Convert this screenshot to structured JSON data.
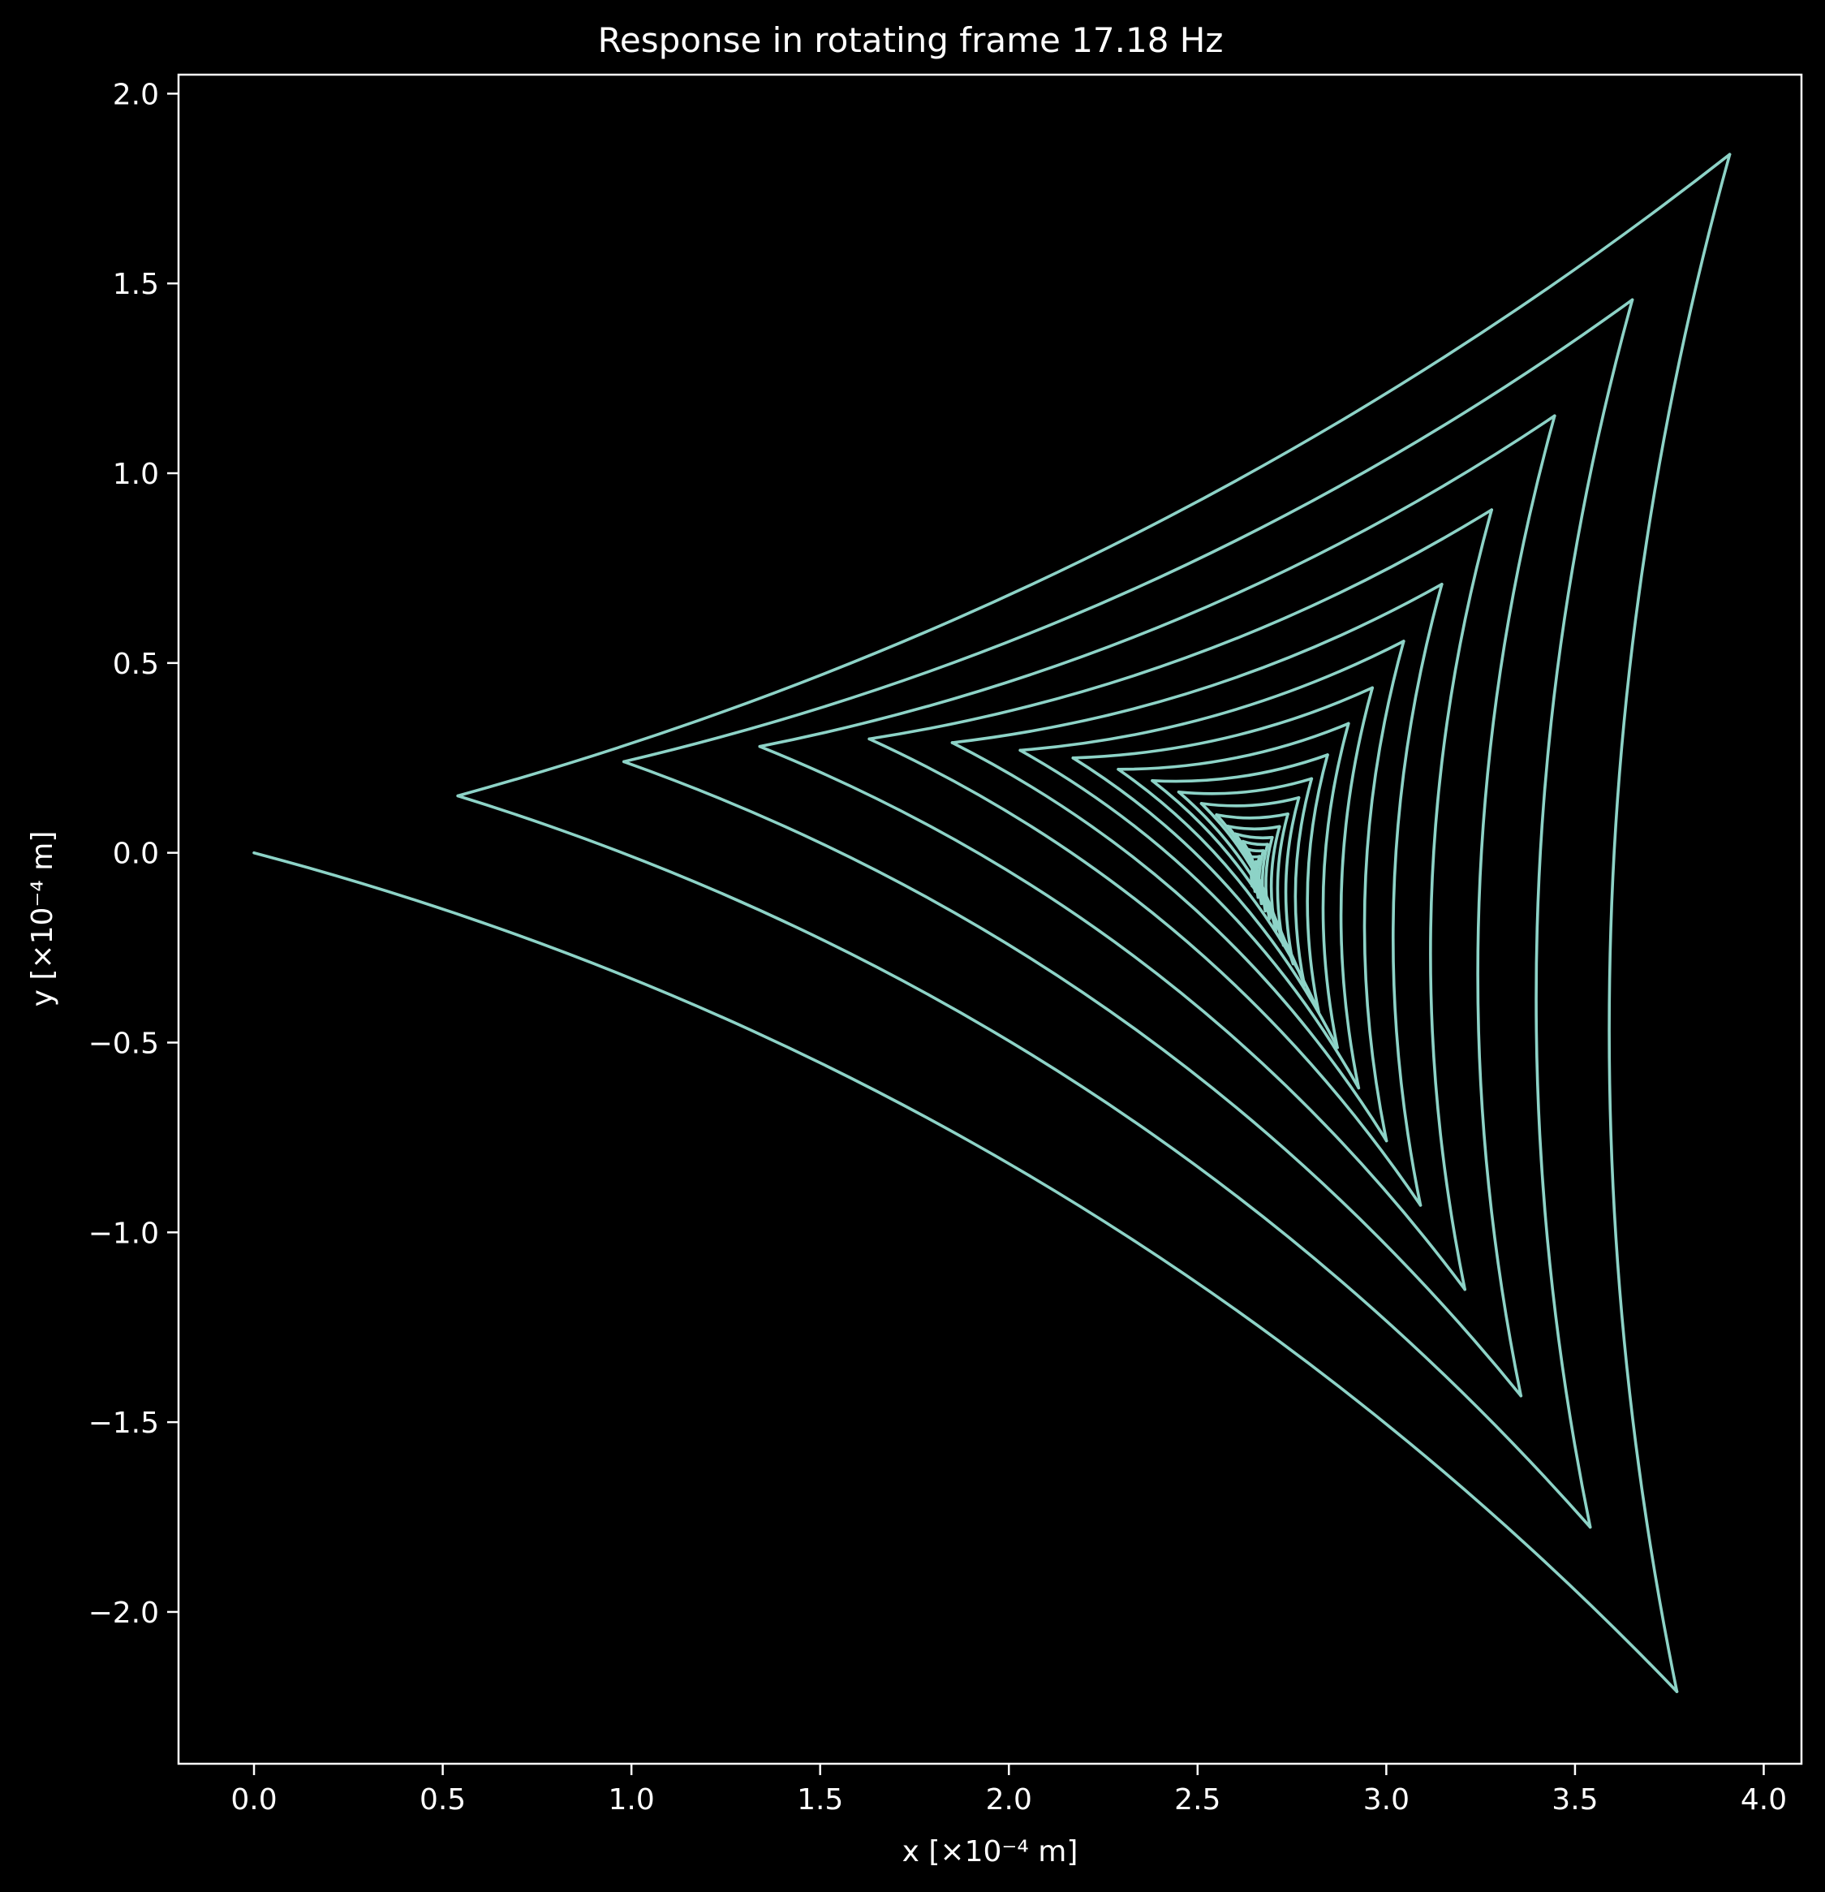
{
  "chart_data": {
    "type": "line",
    "title": "Response in rotating frame 17.18 Hz",
    "xlabel": "x [×10⁻⁴ m]",
    "ylabel": "y [×10⁻⁴ m]",
    "xlim": [
      -0.2,
      4.1
    ],
    "ylim": [
      -2.4,
      2.05
    ],
    "x_ticks": [
      0.0,
      0.5,
      1.0,
      1.5,
      2.0,
      2.5,
      3.0,
      3.5,
      4.0
    ],
    "y_ticks": [
      2.0,
      1.5,
      1.0,
      0.5,
      0.0,
      -0.5,
      -1.0,
      -1.5,
      -2.0
    ],
    "x_tick_labels": [
      "0.0",
      "0.5",
      "1.0",
      "1.5",
      "2.0",
      "2.5",
      "3.0",
      "3.5",
      "4.0"
    ],
    "y_tick_labels": [
      "2.0",
      "1.5",
      "1.0",
      "0.5",
      "0.0",
      "−0.5",
      "−1.0",
      "−1.5",
      "−2.0"
    ],
    "grid": false,
    "legend": "none",
    "line_color": "#8dd3c7",
    "background": "#000000",
    "foreground": "#ffffff",
    "series": [
      {
        "vertices": [
          [
            0.0,
            0.0
          ],
          [
            0.54,
            0.15
          ],
          [
            0.98,
            0.24
          ],
          [
            1.34,
            0.28
          ],
          [
            1.63,
            0.3
          ],
          [
            1.85,
            0.29
          ],
          [
            2.03,
            0.27
          ],
          [
            2.17,
            0.25
          ],
          [
            2.29,
            0.22
          ],
          [
            2.38,
            0.19
          ],
          [
            2.45,
            0.16
          ],
          [
            2.51,
            0.13
          ],
          [
            2.55,
            0.1
          ],
          [
            2.58,
            0.07
          ],
          [
            2.6,
            0.05
          ],
          [
            2.62,
            0.03
          ],
          [
            2.63,
            0.01
          ],
          [
            2.64,
            -0.01
          ],
          [
            2.645,
            -0.03
          ],
          [
            2.65,
            -0.05
          ]
        ],
        "convergence": [
          2.63,
          -0.06
        ],
        "cusp_a": [
          3.77,
          -2.21
        ],
        "cusp_b": [
          3.91,
          1.84
        ]
      }
    ]
  }
}
